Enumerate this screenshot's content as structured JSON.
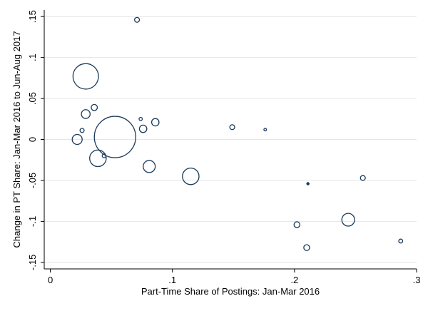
{
  "chart_data": {
    "type": "scatter",
    "title": "",
    "xlabel": "Part-Time Share of Postings: Jan-Mar 2016",
    "ylabel": "Change in PT Share: Jan-Mar 2016 to Jun-Aug 2017",
    "xlim": [
      -0.005,
      0.3
    ],
    "ylim": [
      -0.158,
      0.158
    ],
    "x_ticks": [
      {
        "value": 0,
        "label": "0"
      },
      {
        "value": 0.1,
        "label": ".1"
      },
      {
        "value": 0.2,
        "label": ".2"
      },
      {
        "value": 0.3,
        "label": ".3"
      }
    ],
    "y_ticks": [
      {
        "value": -0.15,
        "label": "-.15"
      },
      {
        "value": -0.1,
        "label": "-.1"
      },
      {
        "value": -0.05,
        "label": "-.05"
      },
      {
        "value": 0,
        "label": "0"
      },
      {
        "value": 0.05,
        "label": ".05"
      },
      {
        "value": 0.1,
        "label": ".1"
      },
      {
        "value": 0.15,
        "label": ".15"
      }
    ],
    "grid": {
      "horizontal": true,
      "vertical": false
    },
    "legend": "none",
    "marker": {
      "shape": "hollow-circle",
      "size_encodes": "weight",
      "color": "#1a3a5c"
    },
    "points": [
      {
        "x": 0.071,
        "y": 0.146,
        "weight": 1.4
      },
      {
        "x": 0.029,
        "y": 0.077,
        "weight": 38
      },
      {
        "x": 0.036,
        "y": 0.039,
        "weight": 2.2
      },
      {
        "x": 0.029,
        "y": 0.031,
        "weight": 4.5
      },
      {
        "x": 0.074,
        "y": 0.025,
        "weight": 0.6
      },
      {
        "x": 0.086,
        "y": 0.021,
        "weight": 3.2
      },
      {
        "x": 0.076,
        "y": 0.013,
        "weight": 3.2
      },
      {
        "x": 0.026,
        "y": 0.011,
        "weight": 1.0
      },
      {
        "x": 0.149,
        "y": 0.015,
        "weight": 1.4
      },
      {
        "x": 0.176,
        "y": 0.012,
        "weight": 0.4
      },
      {
        "x": 0.022,
        "y": 0.0,
        "weight": 5.8
      },
      {
        "x": 0.053,
        "y": 0.003,
        "weight": 100
      },
      {
        "x": 0.044,
        "y": -0.02,
        "weight": 0.8
      },
      {
        "x": 0.039,
        "y": -0.023,
        "weight": 16
      },
      {
        "x": 0.081,
        "y": -0.033,
        "weight": 8.5
      },
      {
        "x": 0.115,
        "y": -0.045,
        "weight": 16
      },
      {
        "x": 0.256,
        "y": -0.047,
        "weight": 1.4
      },
      {
        "x": 0.211,
        "y": -0.054,
        "weight": 0.3
      },
      {
        "x": 0.202,
        "y": -0.104,
        "weight": 2.0
      },
      {
        "x": 0.244,
        "y": -0.098,
        "weight": 9.5
      },
      {
        "x": 0.287,
        "y": -0.124,
        "weight": 0.9
      },
      {
        "x": 0.21,
        "y": -0.132,
        "weight": 2.0
      }
    ]
  }
}
